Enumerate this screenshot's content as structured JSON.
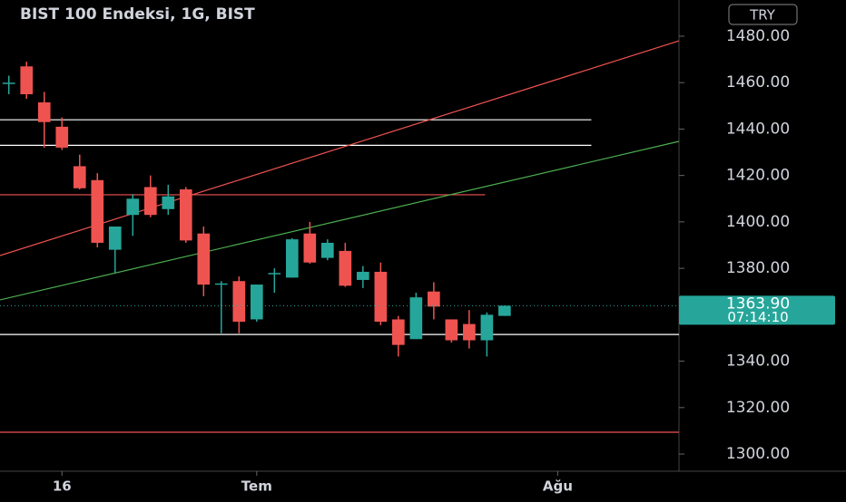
{
  "chart_data": {
    "type": "candlestick",
    "title": "BIST 100 Endeksi, 1G, BIST",
    "currency": "TRY",
    "x": [
      0,
      1,
      2,
      3,
      4,
      5,
      6,
      7,
      8,
      9,
      10,
      11,
      12,
      13,
      14,
      15,
      16,
      17,
      18,
      19,
      20,
      21,
      22,
      23,
      24,
      25,
      26,
      27,
      28
    ],
    "open": [
      1460,
      1467,
      1451.5,
      1441,
      1424,
      1418,
      1388,
      1403,
      1415,
      1405.5,
      1414,
      1395,
      1373,
      1374.5,
      1358,
      1378,
      1376,
      1395,
      1384.5,
      1387.5,
      1375,
      1378.5,
      1358,
      1349.5,
      1370,
      1358,
      1356,
      1349,
      1359.5
    ],
    "high": [
      1463,
      1469,
      1456,
      1445,
      1429,
      1421,
      1398,
      1412,
      1420,
      1416,
      1415,
      1398,
      1374.5,
      1376.5,
      1373,
      1380,
      1393,
      1400,
      1392.5,
      1391,
      1381,
      1382.5,
      1359.5,
      1369.5,
      1374,
      1358,
      1362,
      1361,
      1364
    ],
    "low": [
      1455,
      1453,
      1432,
      1431,
      1414,
      1389,
      1378,
      1394,
      1402,
      1403,
      1391,
      1368,
      1352,
      1352,
      1357,
      1369.5,
      1376,
      1382,
      1383.5,
      1372,
      1371.5,
      1355.5,
      1342,
      1349.5,
      1358,
      1348,
      1345.5,
      1342,
      1359.5
    ],
    "close": [
      1460,
      1455,
      1443,
      1432,
      1414.5,
      1391,
      1398,
      1410,
      1403,
      1411,
      1392,
      1373,
      1373.5,
      1357,
      1373,
      1378,
      1392.5,
      1382.5,
      1391,
      1372.5,
      1378.5,
      1357,
      1347,
      1367.5,
      1363.5,
      1349,
      1349,
      1360,
      1363.9
    ],
    "up_color": "#26a69a",
    "down_color": "#ef5350",
    "xlim": [
      -0.5,
      37.85
    ],
    "xticks": [
      {
        "value": 3,
        "label": "16"
      },
      {
        "value": 14,
        "label": "Tem"
      },
      {
        "value": 31,
        "label": "Ağu"
      }
    ],
    "ylim": [
      1292.6,
      1495.6
    ],
    "yticks": [
      {
        "value": 1300,
        "label": "1300.00"
      },
      {
        "value": 1320,
        "label": "1320.00"
      },
      {
        "value": 1340,
        "label": "1340.00"
      },
      {
        "value": 1360,
        "label": "1360.00"
      },
      {
        "value": 1380,
        "label": "1380.00"
      },
      {
        "value": 1400,
        "label": "1400.00"
      },
      {
        "value": 1420,
        "label": "1420.00"
      },
      {
        "value": 1440,
        "label": "1440.00"
      },
      {
        "value": 1460,
        "label": "1460.00"
      },
      {
        "value": 1480,
        "label": "1480.00"
      }
    ],
    "last_price": {
      "value": 1363.9,
      "label": "1363.90"
    },
    "countdown": "07:14:10",
    "lines": [
      {
        "color": "#ffffff",
        "x": [
          -0.5,
          32.9
        ],
        "y": [
          1444,
          1444
        ]
      },
      {
        "color": "#ffffff",
        "x": [
          -0.5,
          32.9
        ],
        "y": [
          1433,
          1433
        ]
      },
      {
        "color": "#ffffff",
        "x": [
          -0.5,
          37.85
        ],
        "y": [
          1351.5,
          1351.5
        ]
      },
      {
        "color": "#ef5350",
        "x": [
          -0.5,
          26.9
        ],
        "y": [
          1411.7,
          1411.7
        ]
      },
      {
        "color": "#ef5350",
        "x": [
          -0.5,
          37.85
        ],
        "y": [
          1309.4,
          1309.4
        ]
      },
      {
        "color": "#ef5350",
        "x": [
          -0.5,
          37.85
        ],
        "y": [
          1385.5,
          1478
        ]
      },
      {
        "color": "#4caf50",
        "x": [
          -0.5,
          37.85
        ],
        "y": [
          1366.4,
          1434.7
        ]
      }
    ]
  }
}
